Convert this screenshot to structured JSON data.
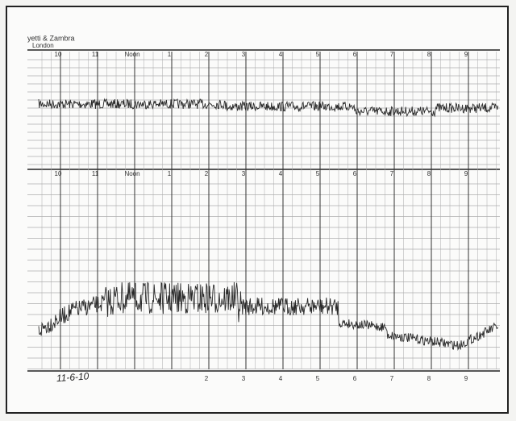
{
  "header": {
    "maker": "yetti & Zambra",
    "place": "London"
  },
  "top_hours": [
    "10",
    "11",
    "Noon",
    "1",
    "2",
    "3",
    "4",
    "5",
    "6",
    "7",
    "8",
    "9"
  ],
  "middle_hours": [
    "10",
    "11",
    "Noon",
    "1",
    "2",
    "3",
    "4",
    "5",
    "6",
    "7",
    "8",
    "9"
  ],
  "bottom_hours": [
    "2",
    "3",
    "4",
    "5",
    "6",
    "7",
    "8",
    "9"
  ],
  "handwriting": "11-6-10"
}
